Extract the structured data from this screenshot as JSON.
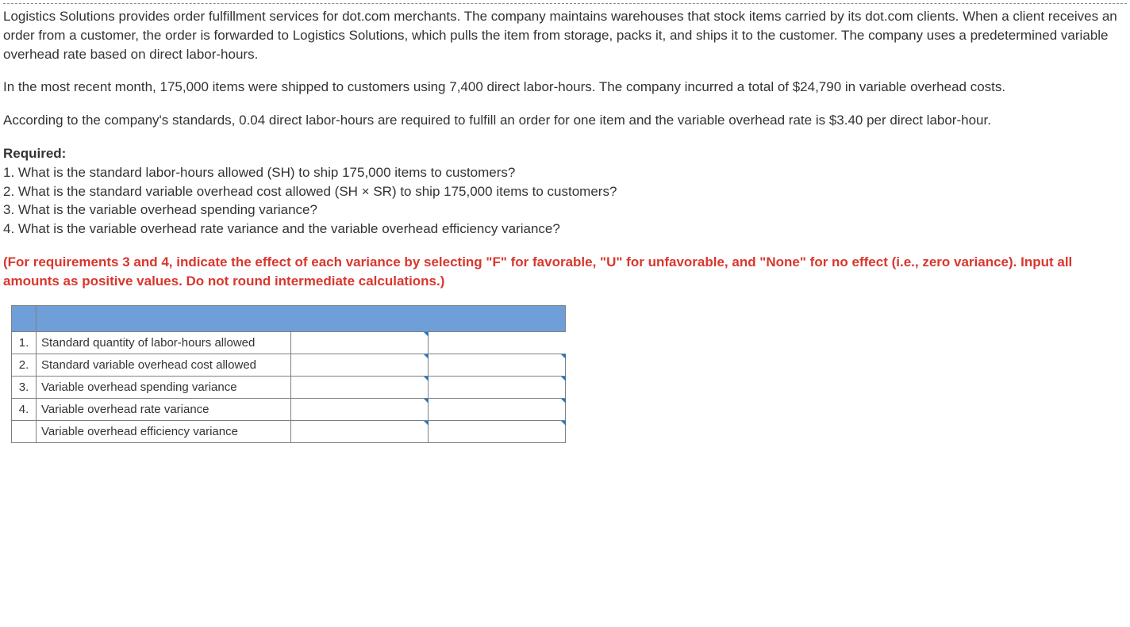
{
  "paragraphs": {
    "p1": "Logistics Solutions provides order fulfillment services for dot.com merchants. The company maintains warehouses that stock items carried by its dot.com clients. When a client receives an order from a customer, the order is forwarded to Logistics Solutions, which pulls the item from storage, packs it, and ships it to the customer. The company uses a predetermined variable overhead rate based on direct labor-hours.",
    "p2": "In the most recent month, 175,000 items were shipped to customers using 7,400 direct labor-hours. The company incurred a total of $24,790 in variable overhead costs.",
    "p3": "According to the company's standards, 0.04 direct labor-hours are required to fulfill an order for one item and the variable overhead rate is $3.40 per direct labor-hour."
  },
  "required": {
    "heading": "Required:",
    "items": [
      "1. What is the standard labor-hours allowed (SH) to ship 175,000 items to customers?",
      "2. What is the standard variable overhead cost allowed (SH × SR) to ship 175,000 items to customers?",
      "3. What is the variable overhead spending variance?",
      "4. What is the variable overhead rate variance and the variable overhead efficiency variance?"
    ]
  },
  "instruction": "(For requirements 3 and 4, indicate the effect of each variance by selecting \"F\" for favorable, \"U\" for unfavorable, and \"None\" for no effect (i.e., zero variance). Input all amounts as positive values. Do not round intermediate calculations.)",
  "answer_table": {
    "header_bg": "#6f9fd8",
    "border_color": "#7f7f7f",
    "triangle_color": "#2e75b6",
    "rows": [
      {
        "num": "1.",
        "label": "Standard quantity of labor-hours allowed",
        "value": "",
        "effect": "",
        "show_effect_cell": false
      },
      {
        "num": "2.",
        "label": "Standard variable overhead cost allowed",
        "value": "",
        "effect": "",
        "show_effect_cell": true
      },
      {
        "num": "3.",
        "label": "Variable overhead spending variance",
        "value": "",
        "effect": "",
        "show_effect_cell": true
      },
      {
        "num": "4.",
        "label": "Variable overhead rate variance",
        "value": "",
        "effect": "",
        "show_effect_cell": true
      },
      {
        "num": "",
        "label": "Variable overhead efficiency variance",
        "value": "",
        "effect": "",
        "show_effect_cell": true
      }
    ]
  }
}
